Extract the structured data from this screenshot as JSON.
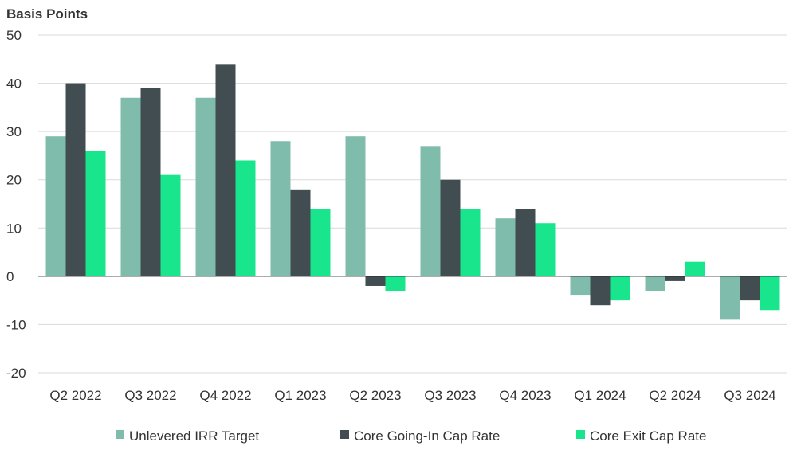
{
  "chart_data": {
    "type": "bar",
    "ylabel": "Basis Points",
    "ylim": [
      -20,
      50
    ],
    "yticks": [
      "50",
      "40",
      "30",
      "20",
      "10",
      "0",
      "-10",
      "-20"
    ],
    "grid": true,
    "legend_position": "bottom",
    "categories": [
      "Q2 2022",
      "Q3 2022",
      "Q4 2022",
      "Q1 2023",
      "Q2 2023",
      "Q3 2023",
      "Q4 2023",
      "Q1 2024",
      "Q2 2024",
      "Q3 2024"
    ],
    "series": [
      {
        "name": "Unlevered IRR Target",
        "color": "#80bcab",
        "values": [
          29,
          37,
          37,
          28,
          29,
          27,
          12,
          -4,
          -3,
          -9
        ]
      },
      {
        "name": "Core Going-In Cap Rate",
        "color": "#414d50",
        "values": [
          40,
          39,
          44,
          18,
          -2,
          20,
          14,
          -6,
          -1,
          -5
        ]
      },
      {
        "name": "Core Exit Cap Rate",
        "color": "#19e58c",
        "values": [
          26,
          21,
          24,
          14,
          -3,
          14,
          11,
          -5,
          3,
          -7
        ]
      }
    ]
  }
}
